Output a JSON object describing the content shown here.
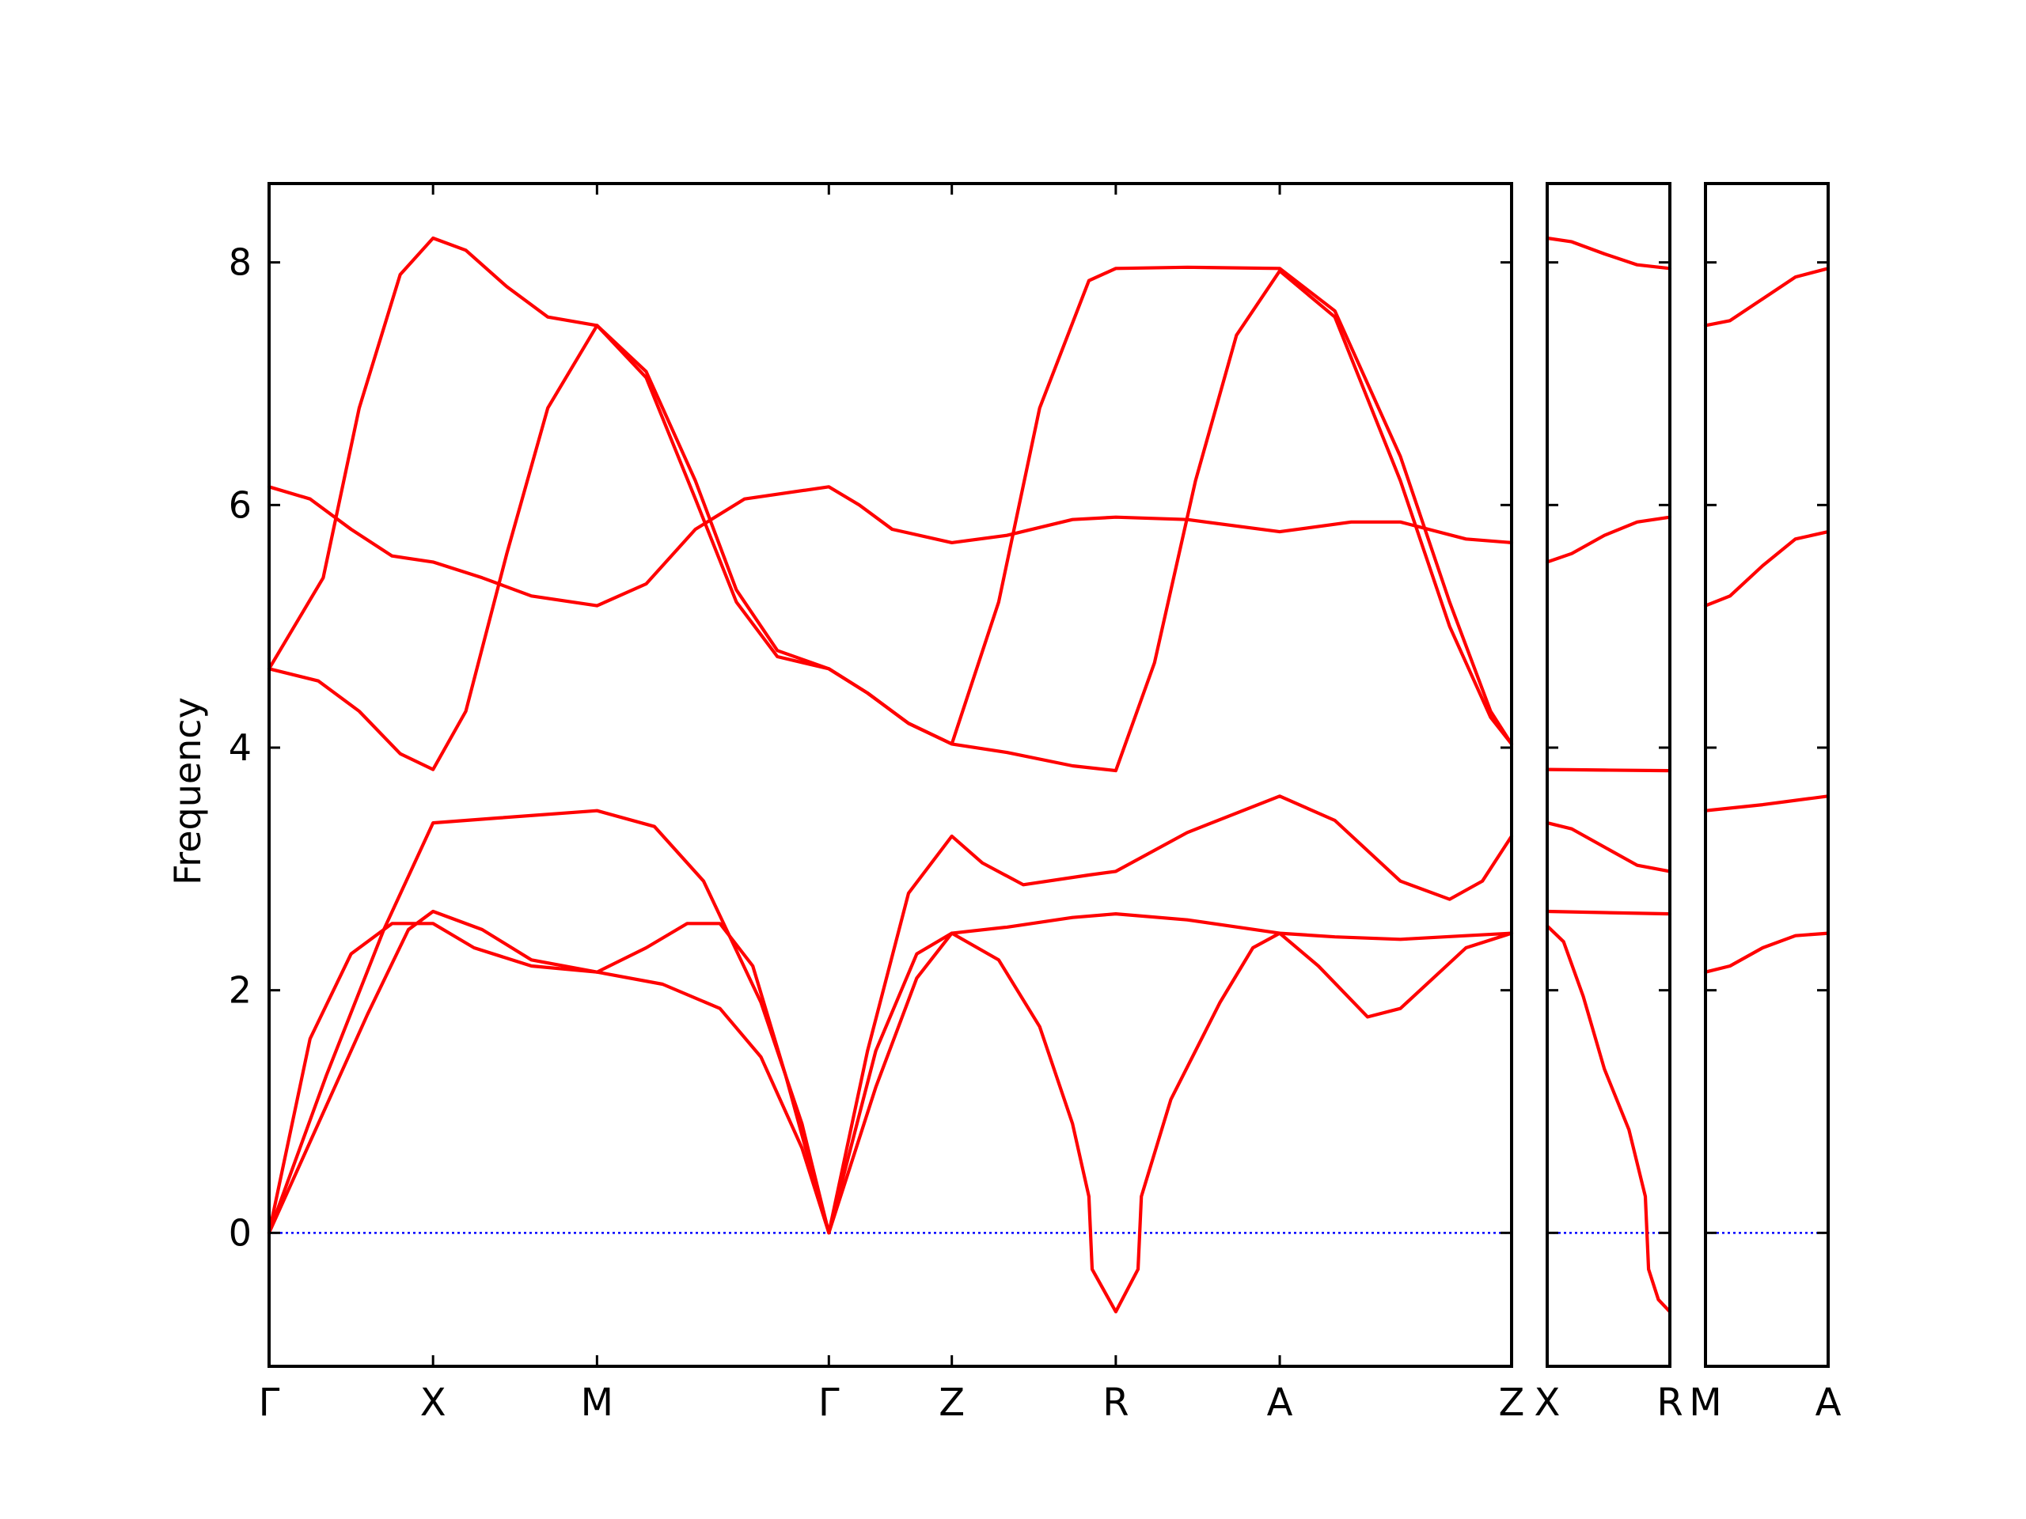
{
  "chart_data": {
    "type": "line",
    "ylabel": "Frequency",
    "ylim": [
      -1.1,
      8.65
    ],
    "yticks": [
      0,
      2,
      4,
      6,
      8
    ],
    "colors": {
      "bands": "#ff0000",
      "zero_line": "#0000ff",
      "frame": "#000000"
    },
    "grid": false,
    "legend": "none",
    "panels": [
      {
        "xticks": [
          {
            "label": "Γ",
            "x": 0.0
          },
          {
            "label": "X",
            "x": 1.0
          },
          {
            "label": "M",
            "x": 2.0
          },
          {
            "label": "Γ",
            "x": 3.414
          },
          {
            "label": "Z",
            "x": 4.164
          },
          {
            "label": "R",
            "x": 5.164
          },
          {
            "label": "A",
            "x": 6.164
          },
          {
            "label": "Z",
            "x": 7.578
          }
        ],
        "xlim": [
          0,
          7.578
        ],
        "series": [
          {
            "points": [
              [
                0,
                4.65
              ],
              [
                0.33,
                5.4
              ],
              [
                0.55,
                6.8
              ],
              [
                0.8,
                7.9
              ],
              [
                1.0,
                8.2
              ],
              [
                1.2,
                8.1
              ],
              [
                1.45,
                7.8
              ],
              [
                1.7,
                7.55
              ],
              [
                2.0,
                7.48
              ],
              [
                2.3,
                7.1
              ],
              [
                2.6,
                6.2
              ],
              [
                2.85,
                5.3
              ],
              [
                3.1,
                4.8
              ],
              [
                3.414,
                4.65
              ],
              [
                3.65,
                4.45
              ],
              [
                3.9,
                4.2
              ],
              [
                4.164,
                4.03
              ],
              [
                4.45,
                5.2
              ],
              [
                4.7,
                6.8
              ],
              [
                5.0,
                7.85
              ],
              [
                5.164,
                7.95
              ],
              [
                5.6,
                7.96
              ],
              [
                6.164,
                7.95
              ],
              [
                6.5,
                7.6
              ],
              [
                6.9,
                6.4
              ],
              [
                7.2,
                5.2
              ],
              [
                7.45,
                4.3
              ],
              [
                7.578,
                4.03
              ]
            ]
          },
          {
            "points": [
              [
                0,
                4.65
              ],
              [
                0.3,
                4.55
              ],
              [
                0.55,
                4.3
              ],
              [
                0.8,
                3.95
              ],
              [
                1.0,
                3.82
              ],
              [
                1.2,
                4.3
              ],
              [
                1.45,
                5.6
              ],
              [
                1.7,
                6.8
              ],
              [
                2.0,
                7.48
              ],
              [
                2.3,
                7.05
              ],
              [
                2.6,
                6.05
              ],
              [
                2.85,
                5.2
              ],
              [
                3.1,
                4.75
              ],
              [
                3.414,
                4.65
              ],
              [
                3.65,
                4.45
              ],
              [
                3.9,
                4.2
              ],
              [
                4.164,
                4.03
              ],
              [
                4.5,
                3.96
              ],
              [
                4.9,
                3.85
              ],
              [
                5.164,
                3.81
              ],
              [
                5.4,
                4.7
              ],
              [
                5.65,
                6.2
              ],
              [
                5.9,
                7.4
              ],
              [
                6.164,
                7.93
              ],
              [
                6.5,
                7.55
              ],
              [
                6.9,
                6.2
              ],
              [
                7.2,
                5.0
              ],
              [
                7.45,
                4.25
              ],
              [
                7.578,
                4.03
              ]
            ]
          },
          {
            "points": [
              [
                0,
                6.15
              ],
              [
                0.25,
                6.05
              ],
              [
                0.5,
                5.8
              ],
              [
                0.75,
                5.58
              ],
              [
                1.0,
                5.53
              ],
              [
                1.3,
                5.4
              ],
              [
                1.6,
                5.25
              ],
              [
                2.0,
                5.17
              ],
              [
                2.3,
                5.35
              ],
              [
                2.6,
                5.8
              ],
              [
                2.9,
                6.05
              ],
              [
                3.414,
                6.15
              ],
              [
                3.6,
                6.0
              ],
              [
                3.8,
                5.8
              ],
              [
                4.164,
                5.69
              ],
              [
                4.5,
                5.75
              ],
              [
                4.9,
                5.88
              ],
              [
                5.164,
                5.9
              ],
              [
                5.6,
                5.88
              ],
              [
                6.164,
                5.78
              ],
              [
                6.6,
                5.86
              ],
              [
                6.9,
                5.86
              ],
              [
                7.3,
                5.72
              ],
              [
                7.578,
                5.69
              ]
            ]
          },
          {
            "points": [
              [
                0,
                0
              ],
              [
                0.25,
                1.6
              ],
              [
                0.5,
                2.3
              ],
              [
                0.75,
                2.55
              ],
              [
                1.0,
                2.55
              ],
              [
                1.25,
                2.35
              ],
              [
                1.6,
                2.2
              ],
              [
                2.0,
                2.15
              ],
              [
                2.3,
                2.35
              ],
              [
                2.55,
                2.55
              ],
              [
                2.75,
                2.55
              ],
              [
                2.95,
                2.2
              ],
              [
                3.15,
                1.3
              ],
              [
                3.414,
                0
              ],
              [
                3.7,
                1.5
              ],
              [
                3.95,
                2.3
              ],
              [
                4.164,
                2.47
              ],
              [
                4.5,
                2.52
              ],
              [
                4.9,
                2.6
              ],
              [
                5.164,
                2.63
              ],
              [
                5.6,
                2.58
              ],
              [
                6.164,
                2.47
              ],
              [
                6.5,
                2.44
              ],
              [
                6.9,
                2.42
              ],
              [
                7.3,
                2.45
              ],
              [
                7.578,
                2.47
              ]
            ]
          },
          {
            "points": [
              [
                0,
                0
              ],
              [
                0.3,
                0.9
              ],
              [
                0.6,
                1.8
              ],
              [
                0.85,
                2.5
              ],
              [
                1.0,
                2.65
              ],
              [
                1.3,
                2.5
              ],
              [
                1.6,
                2.25
              ],
              [
                2.0,
                2.15
              ],
              [
                2.4,
                2.05
              ],
              [
                2.75,
                1.85
              ],
              [
                3.0,
                1.45
              ],
              [
                3.25,
                0.7
              ],
              [
                3.414,
                0
              ],
              [
                3.7,
                1.2
              ],
              [
                3.95,
                2.1
              ],
              [
                4.164,
                2.47
              ],
              [
                4.45,
                2.25
              ],
              [
                4.7,
                1.7
              ],
              [
                4.9,
                0.9
              ],
              [
                5.0,
                0.3
              ],
              [
                5.02,
                -0.3
              ],
              [
                5.164,
                -0.65
              ],
              [
                5.3,
                -0.3
              ],
              [
                5.32,
                0.3
              ],
              [
                5.5,
                1.1
              ],
              [
                5.8,
                1.9
              ],
              [
                6.0,
                2.35
              ],
              [
                6.164,
                2.47
              ],
              [
                6.4,
                2.2
              ],
              [
                6.7,
                1.78
              ],
              [
                6.9,
                1.85
              ],
              [
                7.3,
                2.35
              ],
              [
                7.578,
                2.47
              ]
            ]
          },
          {
            "points": [
              [
                0,
                0
              ],
              [
                0.35,
                1.3
              ],
              [
                0.7,
                2.5
              ],
              [
                1.0,
                3.38
              ],
              [
                1.4,
                3.42
              ],
              [
                2.0,
                3.48
              ],
              [
                2.35,
                3.35
              ],
              [
                2.65,
                2.9
              ],
              [
                3.0,
                1.9
              ],
              [
                3.25,
                0.9
              ],
              [
                3.414,
                0
              ],
              [
                3.65,
                1.5
              ],
              [
                3.9,
                2.8
              ],
              [
                4.164,
                3.27
              ],
              [
                4.35,
                3.05
              ],
              [
                4.6,
                2.87
              ],
              [
                5.0,
                2.95
              ],
              [
                5.164,
                2.98
              ],
              [
                5.6,
                3.3
              ],
              [
                6.164,
                3.6
              ],
              [
                6.5,
                3.4
              ],
              [
                6.9,
                2.9
              ],
              [
                7.2,
                2.75
              ],
              [
                7.4,
                2.9
              ],
              [
                7.578,
                3.27
              ]
            ]
          }
        ]
      },
      {
        "xticks": [
          {
            "label": "X",
            "x": 0.0
          },
          {
            "label": "R",
            "x": 0.75
          }
        ],
        "xlim": [
          0,
          0.75
        ],
        "series": [
          {
            "points": [
              [
                0,
                8.2
              ],
              [
                0.15,
                8.17
              ],
              [
                0.35,
                8.07
              ],
              [
                0.55,
                7.98
              ],
              [
                0.75,
                7.95
              ]
            ]
          },
          {
            "points": [
              [
                0,
                5.53
              ],
              [
                0.15,
                5.6
              ],
              [
                0.35,
                5.75
              ],
              [
                0.55,
                5.86
              ],
              [
                0.75,
                5.9
              ]
            ]
          },
          {
            "points": [
              [
                0,
                3.82
              ],
              [
                0.35,
                3.815
              ],
              [
                0.75,
                3.81
              ]
            ]
          },
          {
            "points": [
              [
                0,
                3.38
              ],
              [
                0.15,
                3.33
              ],
              [
                0.35,
                3.18
              ],
              [
                0.55,
                3.03
              ],
              [
                0.75,
                2.98
              ]
            ]
          },
          {
            "points": [
              [
                0,
                2.65
              ],
              [
                0.35,
                2.64
              ],
              [
                0.75,
                2.63
              ]
            ]
          },
          {
            "points": [
              [
                0,
                2.53
              ],
              [
                0.1,
                2.4
              ],
              [
                0.22,
                1.95
              ],
              [
                0.35,
                1.35
              ],
              [
                0.5,
                0.85
              ],
              [
                0.6,
                0.3
              ],
              [
                0.62,
                -0.3
              ],
              [
                0.68,
                -0.55
              ],
              [
                0.75,
                -0.65
              ]
            ]
          }
        ]
      },
      {
        "xticks": [
          {
            "label": "M",
            "x": 0.0
          },
          {
            "label": "A",
            "x": 0.75
          }
        ],
        "xlim": [
          0,
          0.75
        ],
        "series": [
          {
            "points": [
              [
                0,
                7.48
              ],
              [
                0.15,
                7.52
              ],
              [
                0.35,
                7.7
              ],
              [
                0.55,
                7.88
              ],
              [
                0.75,
                7.95
              ]
            ]
          },
          {
            "points": [
              [
                0,
                5.17
              ],
              [
                0.15,
                5.25
              ],
              [
                0.35,
                5.5
              ],
              [
                0.55,
                5.72
              ],
              [
                0.75,
                5.78
              ]
            ]
          },
          {
            "points": [
              [
                0,
                3.48
              ],
              [
                0.35,
                3.53
              ],
              [
                0.75,
                3.6
              ]
            ]
          },
          {
            "points": [
              [
                0,
                2.15
              ],
              [
                0.15,
                2.2
              ],
              [
                0.35,
                2.35
              ],
              [
                0.55,
                2.45
              ],
              [
                0.75,
                2.47
              ]
            ]
          }
        ]
      }
    ]
  }
}
